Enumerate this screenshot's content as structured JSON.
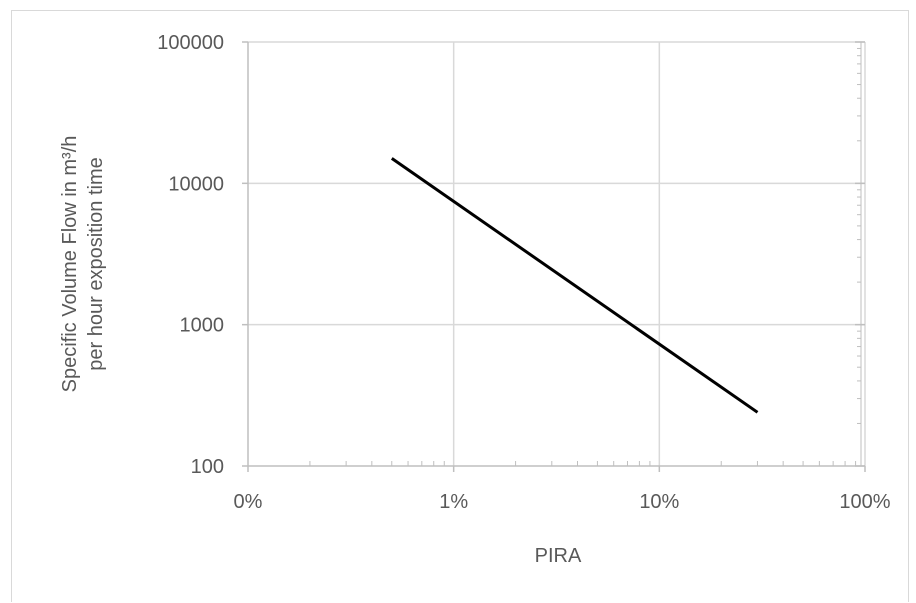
{
  "chart_data": {
    "type": "line",
    "title": "",
    "xlabel": "PIRA",
    "ylabel_lines": [
      "Specific Volume Flow in m³/h",
      "per hour exposition time"
    ],
    "x_scale": "log",
    "y_scale": "log",
    "xlim": [
      0.001,
      1
    ],
    "ylim": [
      100,
      100000
    ],
    "x_tick_values": [
      0.001,
      0.01,
      0.1,
      1
    ],
    "x_tick_labels": [
      "0%",
      "1%",
      "10%",
      "100%"
    ],
    "y_tick_values": [
      100,
      1000,
      10000,
      100000
    ],
    "y_tick_labels": [
      "100",
      "1000",
      "10000",
      "100000"
    ],
    "grid": true,
    "legend": "none",
    "series": [
      {
        "x": [
          0.005,
          0.3
        ],
        "y": [
          15000,
          240
        ],
        "color": "#000000"
      }
    ],
    "colors": {
      "grid": "#d9d9d9",
      "axis": "#bfbfbf",
      "text": "#595959",
      "line": "#000000"
    }
  }
}
